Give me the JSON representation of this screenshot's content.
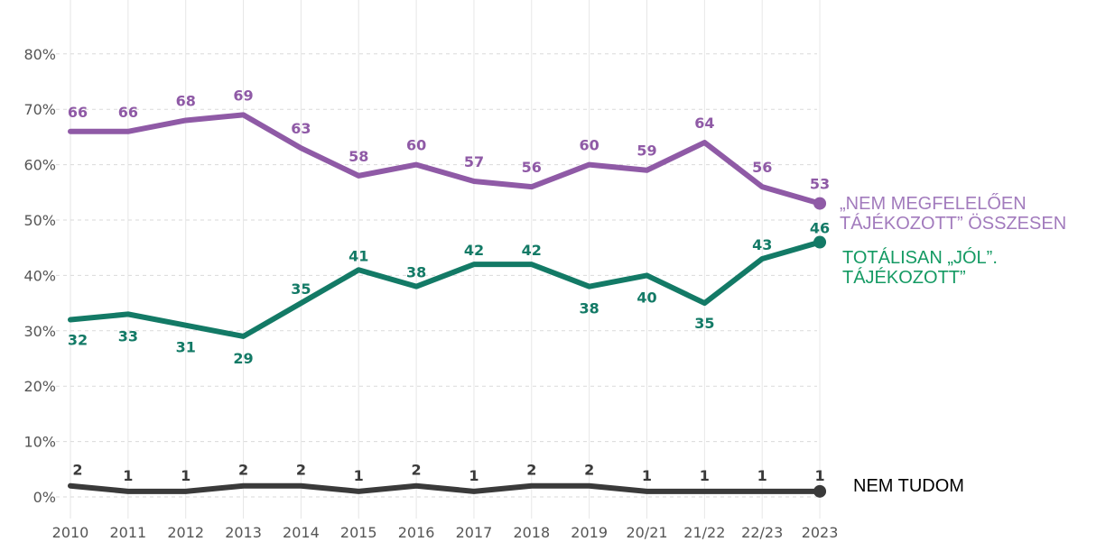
{
  "chart_data": {
    "type": "line",
    "categories": [
      "2010",
      "2011",
      "2012",
      "2013",
      "2014",
      "2015",
      "2016",
      "2017",
      "2018",
      "2019",
      "20/21",
      "21/22",
      "22/23",
      "2023"
    ],
    "ylim": [
      0,
      85
    ],
    "yticks": [
      "0%",
      "10%",
      "20%",
      "30%",
      "40%",
      "50%",
      "60%",
      "70%",
      "80%"
    ],
    "grid": true,
    "series": [
      {
        "name": "„NEM MEGFELELŐEN TÁJÉKOZOTT” ÖSSZESEN",
        "color": "#8f5aa6",
        "values": [
          66,
          66,
          68,
          69,
          63,
          58,
          60,
          57,
          56,
          60,
          59,
          64,
          56,
          53
        ]
      },
      {
        "name": "TOTÁLISAN „JÓL”. TÁJÉKOZOTT”",
        "color": "#137a66",
        "values": [
          32,
          33,
          31,
          29,
          35,
          41,
          38,
          42,
          42,
          38,
          40,
          35,
          43,
          46
        ]
      },
      {
        "name": "NEM TUDOM",
        "color": "#3a3a3a",
        "values": [
          2,
          1,
          1,
          2,
          2,
          1,
          2,
          1,
          2,
          2,
          1,
          1,
          1,
          1
        ]
      }
    ]
  },
  "labels": {
    "purple": "„NEM MEGFELELŐEN\nTÁJÉKOZOTT” ÖSSZESEN",
    "green": "TOTÁLISAN „JÓL”.\nTÁJÉKOZOTT”",
    "black": "NEM TUDOM"
  }
}
